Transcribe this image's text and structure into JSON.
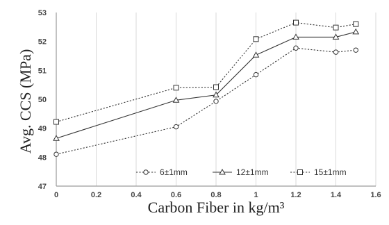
{
  "chart_data": {
    "type": "line",
    "title": "",
    "xlabel": "Carbon Fiber in kg/m³",
    "ylabel": "Avg. CCS (MPa)",
    "xlim": [
      0,
      1.6
    ],
    "ylim": [
      47,
      53
    ],
    "xticks": [
      "0",
      "0.2",
      "0.4",
      "0.6",
      "0.8",
      "1",
      "1.2",
      "1.4",
      "1.6"
    ],
    "yticks": [
      "47",
      "48",
      "49",
      "50",
      "51",
      "52",
      "53"
    ],
    "grid": "vertical",
    "legend_position": "bottom-right",
    "x": [
      0,
      0.6,
      0.8,
      1.0,
      1.2,
      1.4,
      1.5
    ],
    "series": [
      {
        "name": "6±1mm",
        "values": [
          48.1,
          49.05,
          49.93,
          50.85,
          51.77,
          51.63,
          51.7
        ],
        "marker": "circle",
        "line": "dotted"
      },
      {
        "name": "12±1mm",
        "values": [
          48.65,
          49.97,
          50.15,
          51.53,
          52.15,
          52.15,
          52.33
        ],
        "marker": "triangle",
        "line": "solid"
      },
      {
        "name": "15±1mm",
        "values": [
          49.22,
          50.4,
          50.42,
          52.08,
          52.65,
          52.48,
          52.6
        ],
        "marker": "square",
        "line": "dotted"
      }
    ]
  }
}
